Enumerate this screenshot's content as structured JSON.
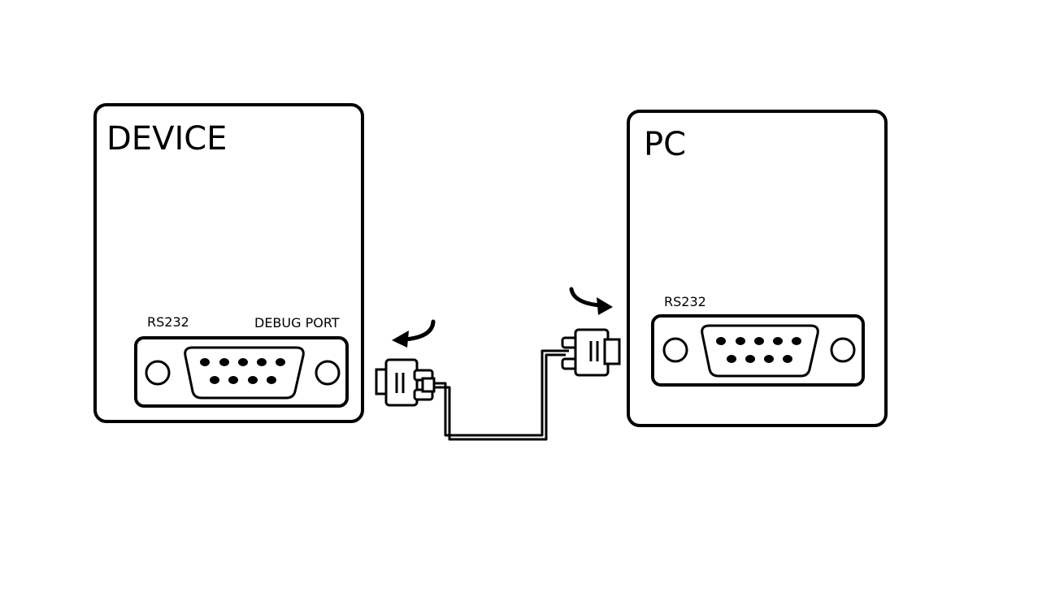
{
  "device": {
    "title": "DEVICE",
    "port_label_left": "RS232",
    "port_label_right": "DEBUG PORT"
  },
  "pc": {
    "title": "PC",
    "port_label": "RS232"
  },
  "colors": {
    "stroke": "#000000",
    "background": "#ffffff"
  }
}
